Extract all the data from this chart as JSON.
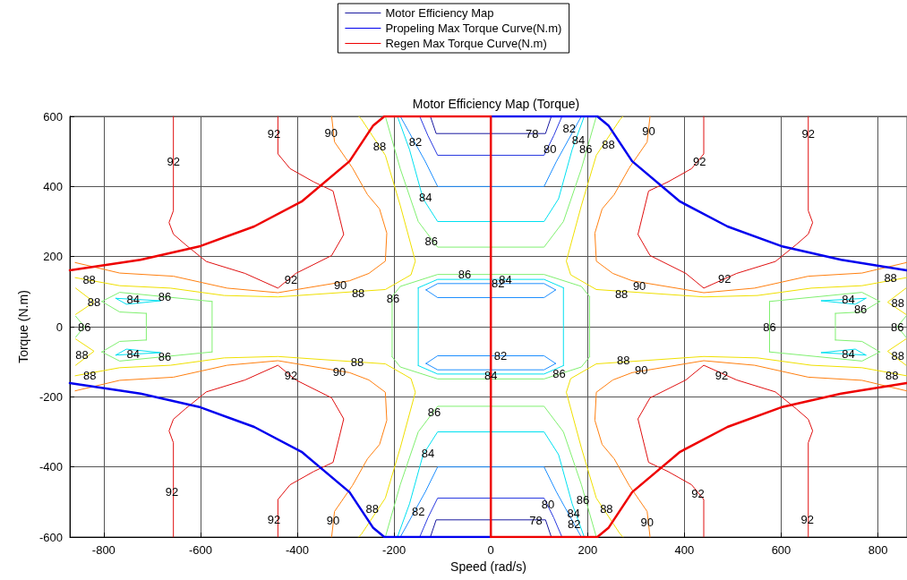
{
  "chart_data": {
    "type": "line",
    "title": "Motor Efficiency Map (Torque)",
    "xlabel": "Speed (rad/s)",
    "ylabel": "Torque (N.m)",
    "xlim": [
      -870,
      860
    ],
    "xticks": [
      -800,
      -600,
      -400,
      -200,
      0,
      200,
      400,
      600,
      800
    ],
    "ylim": [
      -600,
      600
    ],
    "yticks": [
      -600,
      -400,
      -200,
      0,
      200,
      400,
      600
    ],
    "grid": true,
    "legend": "top",
    "marker": "none",
    "line_style": "solid",
    "series": [
      {
        "name": "Motor Efficiency Map",
        "color": "#1a1aa0",
        "x": [
          -125,
          -113,
          113,
          125
        ],
        "values": [
          600,
          551,
          551,
          600
        ]
      },
      {
        "color": "#1a1aa0",
        "x": [
          -125,
          -113,
          113,
          125
        ],
        "values": [
          -600,
          -551,
          -551,
          -600
        ]
      },
      {
        "color": "#2a3ae0",
        "x": [
          -147,
          -130,
          -110,
          110,
          130,
          147
        ],
        "values": [
          600,
          545,
          489,
          489,
          545,
          600
        ]
      },
      {
        "color": "#2a3ae0",
        "x": [
          -147,
          -130,
          -110,
          110,
          130,
          147
        ],
        "values": [
          -600,
          -545,
          -489,
          -489,
          -545,
          -600
        ]
      },
      {
        "color": "#1e8fff",
        "x": [
          -187,
          -135,
          -110,
          110,
          135,
          187
        ],
        "values": [
          600,
          470,
          400,
          400,
          470,
          600
        ]
      },
      {
        "color": "#1e8fff",
        "x": [
          -187,
          -135,
          -110,
          110,
          135,
          187
        ],
        "values": [
          -600,
          -470,
          -400,
          -400,
          -470,
          -600
        ]
      },
      {
        "color": "#1e8fff",
        "x": [
          -134,
          -110,
          110,
          134
        ],
        "values": [
          105,
          123,
          123,
          105
        ]
      },
      {
        "color": "#1e8fff",
        "x": [
          -134,
          -110,
          110,
          134
        ],
        "values": [
          105,
          83,
          83,
          105
        ]
      },
      {
        "color": "#1e8fff",
        "x": [
          -134,
          -110,
          110,
          134
        ],
        "values": [
          -105,
          -123,
          -123,
          -105
        ]
      },
      {
        "color": "#1e8fff",
        "x": [
          -134,
          -110,
          110,
          134
        ],
        "values": [
          -105,
          -83,
          -83,
          -105
        ]
      },
      {
        "color": "#00e0f0",
        "x": [
          -193,
          -168,
          -140,
          -110,
          110,
          140,
          168,
          193
        ],
        "values": [
          600,
          505,
          365,
          300,
          300,
          365,
          505,
          600
        ]
      },
      {
        "color": "#00e0f0",
        "x": [
          -193,
          -168,
          -140,
          -110,
          110,
          140,
          168,
          193
        ],
        "values": [
          -600,
          -505,
          -365,
          -300,
          -300,
          -365,
          -505,
          -600
        ]
      },
      {
        "color": "#00e0f0",
        "x": [
          -150,
          -110,
          110,
          150
        ],
        "values": [
          111,
          135,
          135,
          111
        ]
      },
      {
        "color": "#00e0f0",
        "x": [
          -150,
          -110,
          110,
          150
        ],
        "values": [
          -111,
          -135,
          -135,
          -111
        ]
      },
      {
        "color": "#00e0f0",
        "x": [
          150,
          150
        ],
        "values": [
          111,
          -111
        ]
      },
      {
        "color": "#00e0f0",
        "x": [
          -150,
          -150
        ],
        "values": [
          111,
          -111
        ]
      },
      {
        "color": "#00e0f0",
        "x": [
          683,
          775
        ],
        "values": [
          74,
          81
        ]
      },
      {
        "color": "#00e0f0",
        "x": [
          683,
          753,
          775
        ],
        "values": [
          74,
          64,
          81
        ]
      },
      {
        "color": "#00e0f0",
        "x": [
          683,
          775
        ],
        "values": [
          -74,
          -81
        ]
      },
      {
        "color": "#00e0f0",
        "x": [
          683,
          753,
          775
        ],
        "values": [
          -74,
          -64,
          -81
        ]
      },
      {
        "color": "#00e0f0",
        "x": [
          -775,
          -683
        ],
        "values": [
          81,
          74
        ]
      },
      {
        "color": "#00e0f0",
        "x": [
          -775,
          -753,
          -683
        ],
        "values": [
          81,
          64,
          74
        ]
      },
      {
        "color": "#00e0f0",
        "x": [
          -775,
          -683
        ],
        "values": [
          -81,
          -74
        ]
      },
      {
        "color": "#00e0f0",
        "x": [
          -775,
          -753,
          -683
        ],
        "values": [
          -81,
          -64,
          -74
        ]
      },
      {
        "color": "#80f070",
        "x": [
          -218,
          -187,
          -150,
          -110,
          110,
          150,
          187,
          218
        ],
        "values": [
          600,
          450,
          300,
          227,
          227,
          300,
          450,
          600
        ]
      },
      {
        "color": "#80f070",
        "x": [
          -218,
          -187,
          -150,
          -110,
          110,
          150,
          187,
          218
        ],
        "values": [
          -600,
          -450,
          -300,
          -227,
          -227,
          -300,
          -450,
          -600
        ]
      },
      {
        "color": "#80f070",
        "x": [
          -204,
          -187,
          -110,
          110,
          187,
          204
        ],
        "values": [
          86,
          115,
          149,
          149,
          115,
          86
        ]
      },
      {
        "color": "#80f070",
        "x": [
          -204,
          -187,
          -110,
          110,
          187,
          204
        ],
        "values": [
          -86,
          -115,
          -149,
          -149,
          -115,
          -86
        ]
      },
      {
        "color": "#80f070",
        "x": [
          204,
          204
        ],
        "values": [
          86,
          -86
        ]
      },
      {
        "color": "#80f070",
        "x": [
          -204,
          -204
        ],
        "values": [
          86,
          -86
        ]
      },
      {
        "color": "#80f070",
        "x": [
          576,
          767,
          804
        ],
        "values": [
          72,
          98,
          72
        ]
      },
      {
        "color": "#80f070",
        "x": [
          576,
          767,
          804
        ],
        "values": [
          -72,
          -98,
          -72
        ]
      },
      {
        "color": "#80f070",
        "x": [
          576,
          576
        ],
        "values": [
          72,
          -72
        ]
      },
      {
        "color": "#80f070",
        "x": [
          712,
          767,
          804
        ],
        "values": [
          38,
          42,
          72
        ]
      },
      {
        "color": "#80f070",
        "x": [
          712,
          767,
          804
        ],
        "values": [
          -38,
          -42,
          -72
        ]
      },
      {
        "color": "#80f070",
        "x": [
          712,
          712
        ],
        "values": [
          38,
          -38
        ]
      },
      {
        "color": "#80f070",
        "x": [
          -804,
          -767,
          -576
        ],
        "values": [
          72,
          98,
          72
        ]
      },
      {
        "color": "#80f070",
        "x": [
          -804,
          -767,
          -576
        ],
        "values": [
          -72,
          -98,
          -72
        ]
      },
      {
        "color": "#80f070",
        "x": [
          -576,
          -576
        ],
        "values": [
          72,
          -72
        ]
      },
      {
        "color": "#80f070",
        "x": [
          -804,
          -767,
          -712
        ],
        "values": [
          72,
          42,
          38
        ]
      },
      {
        "color": "#80f070",
        "x": [
          -804,
          -767,
          -712
        ],
        "values": [
          -72,
          -42,
          -38
        ]
      },
      {
        "color": "#80f070",
        "x": [
          -712,
          -712
        ],
        "values": [
          38,
          -38
        ]
      },
      {
        "color": "#80f070",
        "x": [
          840,
          858
        ],
        "values": [
          0,
          30
        ]
      },
      {
        "color": "#80f070",
        "x": [
          840,
          858
        ],
        "values": [
          0,
          -30
        ]
      },
      {
        "color": "#80f070",
        "x": [
          -858,
          -840
        ],
        "values": [
          30,
          0
        ]
      },
      {
        "color": "#80f070",
        "x": [
          -858,
          -840
        ],
        "values": [
          -30,
          0
        ]
      },
      {
        "color": "#f0e000",
        "x": [
          273,
          267,
          218,
          187,
          156,
          165,
          218,
          440,
          551,
          662,
          767,
          859
        ],
        "values": [
          600,
          591,
          489,
          345,
          187,
          148,
          106,
          85,
          89,
          110,
          117,
          140
        ]
      },
      {
        "color": "#f0e000",
        "x": [
          273,
          267,
          218,
          187,
          156,
          165,
          218,
          440,
          551,
          662,
          767,
          859
        ],
        "values": [
          -600,
          -591,
          -489,
          -345,
          -187,
          -148,
          -106,
          -85,
          -89,
          -110,
          -117,
          -140
        ]
      },
      {
        "color": "#f0e000",
        "x": [
          -273,
          -267,
          -218,
          -187,
          -156,
          -165,
          -218,
          -440,
          -551,
          -662,
          -767,
          -859
        ],
        "values": [
          600,
          591,
          489,
          345,
          187,
          148,
          106,
          85,
          89,
          110,
          117,
          140
        ]
      },
      {
        "color": "#f0e000",
        "x": [
          -273,
          -267,
          -218,
          -187,
          -156,
          -165,
          -218,
          -440,
          -551,
          -662,
          -767,
          -859
        ],
        "values": [
          -600,
          -591,
          -489,
          -345,
          -187,
          -148,
          -106,
          -85,
          -89,
          -110,
          -117,
          -140
        ]
      },
      {
        "color": "#f0e000",
        "x": [
          858,
          820,
          858
        ],
        "values": [
          110,
          70,
          35
        ]
      },
      {
        "color": "#f0e000",
        "x": [
          858,
          820,
          858
        ],
        "values": [
          -35,
          -70,
          -110
        ]
      },
      {
        "color": "#f0e000",
        "x": [
          -858,
          -820,
          -858
        ],
        "values": [
          110,
          70,
          35
        ]
      },
      {
        "color": "#f0e000",
        "x": [
          -858,
          -820,
          -858
        ],
        "values": [
          -35,
          -70,
          -110
        ]
      },
      {
        "color": "#ff8010",
        "x": [
          329,
          323,
          286,
          255,
          230,
          215,
          218,
          252,
          292,
          440,
          545,
          656,
          767,
          859
        ],
        "values": [
          600,
          527,
          453,
          377,
          336,
          267,
          187,
          152,
          131,
          97,
          110,
          144,
          153,
          183
        ]
      },
      {
        "color": "#ff8010",
        "x": [
          329,
          323,
          286,
          255,
          230,
          215,
          218,
          252,
          292,
          440,
          545,
          656,
          767,
          859
        ],
        "values": [
          -600,
          -527,
          -453,
          -377,
          -336,
          -267,
          -187,
          -152,
          -131,
          -97,
          -110,
          -144,
          -153,
          -183
        ]
      },
      {
        "color": "#ff8010",
        "x": [
          -329,
          -323,
          -286,
          -255,
          -230,
          -215,
          -218,
          -252,
          -292,
          -440,
          -545,
          -656,
          -767,
          -859
        ],
        "values": [
          600,
          527,
          453,
          377,
          336,
          267,
          187,
          152,
          131,
          97,
          110,
          144,
          153,
          183
        ]
      },
      {
        "color": "#ff8010",
        "x": [
          -329,
          -323,
          -286,
          -255,
          -230,
          -215,
          -218,
          -252,
          -292,
          -440,
          -545,
          -656,
          -767,
          -859
        ],
        "values": [
          -600,
          -527,
          -453,
          -377,
          -336,
          -267,
          -187,
          -152,
          -131,
          -97,
          -110,
          -144,
          -153,
          -183
        ]
      },
      {
        "color": "#e01010",
        "x": [
          440,
          440,
          415,
          366,
          326,
          304,
          329,
          403,
          440,
          508,
          588,
          631,
          656,
          665,
          656,
          656
        ],
        "values": [
          600,
          493,
          451,
          413,
          387,
          263,
          203,
          152,
          110,
          152,
          186,
          234,
          264,
          297,
          331,
          600
        ]
      },
      {
        "color": "#e01010",
        "x": [
          440,
          440,
          415,
          366,
          326,
          304,
          329,
          403,
          440,
          508,
          588,
          631,
          656,
          665,
          656,
          656
        ],
        "values": [
          -600,
          -493,
          -451,
          -413,
          -387,
          -263,
          -203,
          -152,
          -110,
          -152,
          -186,
          -234,
          -264,
          -297,
          -331,
          -600
        ]
      },
      {
        "color": "#e01010",
        "x": [
          -440,
          -440,
          -415,
          -366,
          -326,
          -304,
          -329,
          -403,
          -440,
          -508,
          -588,
          -631,
          -656,
          -665,
          -656,
          -656
        ],
        "values": [
          600,
          493,
          451,
          413,
          387,
          263,
          203,
          152,
          110,
          152,
          186,
          234,
          264,
          297,
          331,
          600
        ]
      },
      {
        "color": "#e01010",
        "x": [
          -440,
          -440,
          -415,
          -366,
          -326,
          -304,
          -329,
          -403,
          -440,
          -508,
          -588,
          -631,
          -656,
          -665,
          -656,
          -656
        ],
        "values": [
          -600,
          -493,
          -451,
          -413,
          -387,
          -263,
          -203,
          -152,
          -110,
          -152,
          -186,
          -234,
          -264,
          -297,
          -331,
          -600
        ]
      },
      {
        "name": "Propeling Max Torque Curve(N.m)",
        "color": "#0000ee",
        "x": [
          0,
          220,
          243,
          292,
          391,
          489,
          600,
          724,
          859,
          null,
          0,
          -220,
          -243,
          -292,
          -391,
          -489,
          -600,
          -724,
          -870
        ],
        "values": [
          600,
          600,
          574,
          472,
          357,
          286,
          230,
          191,
          161,
          null,
          -600,
          -600,
          -574,
          -472,
          -357,
          -286,
          -230,
          -191,
          -161
        ]
      },
      {
        "name": "Regen Max Torque Curve(N.m)",
        "color": "#ee0000",
        "x": [
          -870,
          -724,
          -600,
          -489,
          -391,
          -292,
          -243,
          -220,
          0,
          0,
          220,
          243,
          292,
          391,
          489,
          600,
          724,
          859
        ],
        "values": [
          161,
          191,
          230,
          286,
          357,
          472,
          574,
          600,
          600,
          -600,
          -600,
          -574,
          -472,
          -357,
          -286,
          -230,
          -191,
          -161
        ]
      }
    ],
    "annotations": [
      {
        "text": "78",
        "x": 85,
        "y": 551
      },
      {
        "text": "80",
        "x": 122,
        "y": 506
      },
      {
        "text": "82",
        "x": 162,
        "y": 566
      },
      {
        "text": "84",
        "x": 181,
        "y": 532
      },
      {
        "text": "86",
        "x": 196,
        "y": 506
      },
      {
        "text": "88",
        "x": 243,
        "y": 519
      },
      {
        "text": "90",
        "x": 326,
        "y": 557
      },
      {
        "text": "92",
        "x": 431,
        "y": 472
      },
      {
        "text": "92",
        "x": 656,
        "y": 549
      },
      {
        "text": "92",
        "x": 483,
        "y": 136
      },
      {
        "text": "90",
        "x": 307,
        "y": 115
      },
      {
        "text": "88",
        "x": 270,
        "y": 93
      },
      {
        "text": "88",
        "x": 826,
        "y": 140
      },
      {
        "text": "84",
        "x": 739,
        "y": 78
      },
      {
        "text": "86",
        "x": 764,
        "y": 51
      },
      {
        "text": "88",
        "x": 841,
        "y": 68
      },
      {
        "text": "82",
        "x": -156,
        "y": 528
      },
      {
        "text": "84",
        "x": -135,
        "y": 370
      },
      {
        "text": "86",
        "x": -123,
        "y": 243
      },
      {
        "text": "88",
        "x": -230,
        "y": 515
      },
      {
        "text": "90",
        "x": -330,
        "y": 554
      },
      {
        "text": "92",
        "x": -448,
        "y": 549
      },
      {
        "text": "92",
        "x": -656,
        "y": 472
      },
      {
        "text": "92",
        "x": -413,
        "y": 135
      },
      {
        "text": "90",
        "x": -311,
        "y": 120
      },
      {
        "text": "88",
        "x": -274,
        "y": 97
      },
      {
        "text": "86",
        "x": -54,
        "y": 149
      },
      {
        "text": "84",
        "x": 30,
        "y": 135
      },
      {
        "text": "82",
        "x": 15,
        "y": 123
      },
      {
        "text": "86",
        "x": -202,
        "y": 81
      },
      {
        "text": "84",
        "x": -739,
        "y": 78
      },
      {
        "text": "86",
        "x": -674,
        "y": 85
      },
      {
        "text": "88",
        "x": -830,
        "y": 135
      },
      {
        "text": "88",
        "x": -820,
        "y": 70
      },
      {
        "text": "92",
        "x": 428,
        "y": -477
      },
      {
        "text": "92",
        "x": 654,
        "y": -549
      },
      {
        "text": "90",
        "x": 323,
        "y": -557
      },
      {
        "text": "88",
        "x": 239,
        "y": -519
      },
      {
        "text": "86",
        "x": 190,
        "y": -493
      },
      {
        "text": "84",
        "x": 171,
        "y": -532
      },
      {
        "text": "82",
        "x": 172,
        "y": -562
      },
      {
        "text": "80",
        "x": 118,
        "y": -506
      },
      {
        "text": "78",
        "x": 93,
        "y": -553
      },
      {
        "text": "92",
        "x": 477,
        "y": -140
      },
      {
        "text": "90",
        "x": 311,
        "y": -123
      },
      {
        "text": "88",
        "x": 274,
        "y": -97
      },
      {
        "text": "86",
        "x": 141,
        "y": -135
      },
      {
        "text": "82",
        "x": 20,
        "y": -83
      },
      {
        "text": "84",
        "x": 0,
        "y": -140
      },
      {
        "text": "86",
        "x": 576,
        "y": 0
      },
      {
        "text": "84",
        "x": 739,
        "y": -78
      },
      {
        "text": "88",
        "x": 841,
        "y": -84
      },
      {
        "text": "88",
        "x": 829,
        "y": -140
      },
      {
        "text": "86",
        "x": 840,
        "y": 0
      },
      {
        "text": "92",
        "x": -413,
        "y": -140
      },
      {
        "text": "90",
        "x": -313,
        "y": -128
      },
      {
        "text": "88",
        "x": -276,
        "y": -102
      },
      {
        "text": "88",
        "x": -829,
        "y": -140
      },
      {
        "text": "84",
        "x": -739,
        "y": -78
      },
      {
        "text": "86",
        "x": -674,
        "y": -85
      },
      {
        "text": "88",
        "x": -845,
        "y": -81
      },
      {
        "text": "86",
        "x": -840,
        "y": 0
      },
      {
        "text": "86",
        "x": -117,
        "y": -243
      },
      {
        "text": "84",
        "x": -130,
        "y": -362
      },
      {
        "text": "82",
        "x": -150,
        "y": -528
      },
      {
        "text": "88",
        "x": -245,
        "y": -519
      },
      {
        "text": "90",
        "x": -326,
        "y": -554
      },
      {
        "text": "92",
        "x": -448,
        "y": -549
      },
      {
        "text": "92",
        "x": -659,
        "y": -472
      }
    ]
  }
}
